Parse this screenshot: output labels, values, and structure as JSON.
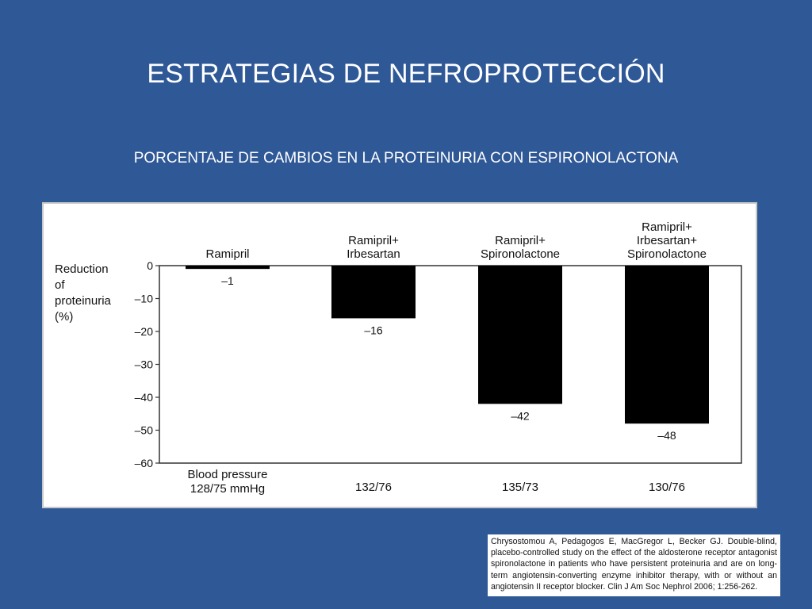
{
  "slide": {
    "title": "ESTRATEGIAS DE NEFROPROTECCIÓN",
    "subtitle": "PORCENTAJE DE CAMBIOS EN LA PROTEINURIA  CON ESPIRONOLACTONA"
  },
  "chart_data": {
    "type": "bar",
    "ylabel_lines": [
      "Reduction",
      "of",
      "proteinuria",
      "(%)"
    ],
    "ylim": [
      -60,
      0
    ],
    "yticks": [
      0,
      -10,
      -20,
      -30,
      -40,
      -50,
      -60
    ],
    "ytick_labels": [
      "0",
      "–10",
      "–20",
      "–30",
      "–40",
      "–50",
      "–60"
    ],
    "categories": [
      [
        "Ramipril"
      ],
      [
        "Ramipril+",
        "Irbesartan"
      ],
      [
        "Ramipril+",
        "Spironolactone"
      ],
      [
        "Ramipril+",
        "Irbesartan+",
        "Spironolactone"
      ]
    ],
    "values": [
      -1,
      -16,
      -42,
      -48
    ],
    "value_labels": [
      "–1",
      "–16",
      "–42",
      "–48"
    ],
    "bar_color": "#000000",
    "footer_label_lines": [
      "Blood pressure",
      "128/75 mmHg"
    ],
    "blood_pressure": [
      "132/76",
      "135/73",
      "130/76"
    ],
    "grid": false,
    "legend": "none"
  },
  "reference": {
    "text": "Chrysostomou A, Pedagogos E, MacGregor L, Becker GJ. Double-blind, placebo-controlled study on the effect of the aldosterone receptor antagonist spironolactone in patients who have persistent proteinuria and are on long-term angiotensin-converting enzyme inhibitor therapy, with or without an angiotensin II receptor blocker. Clin J Am Soc Nephrol 2006; 1:256-262."
  }
}
